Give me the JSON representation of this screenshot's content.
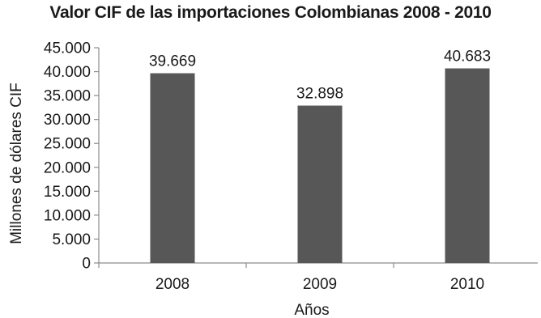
{
  "chart_data": {
    "type": "bar",
    "title": "Valor CIF de las importaciones Colombianas 2008 - 2010",
    "xlabel": "Años",
    "ylabel": "Millones de dólares CIF",
    "categories": [
      "2008",
      "2009",
      "2010"
    ],
    "values": [
      39669,
      32898,
      40683
    ],
    "value_labels": [
      "39.669",
      "32.898",
      "40.683"
    ],
    "ylim": [
      0,
      45000
    ],
    "yticks": [
      0,
      5000,
      10000,
      15000,
      20000,
      25000,
      30000,
      35000,
      40000,
      45000
    ],
    "ytick_labels": [
      "0",
      "5.000",
      "10.000",
      "15.000",
      "20.000",
      "25.000",
      "30.000",
      "35.000",
      "40.000",
      "45.000"
    ],
    "grid": false,
    "legend": "none",
    "bar_color": "#575757",
    "axis_color": "#8c8c8c"
  }
}
